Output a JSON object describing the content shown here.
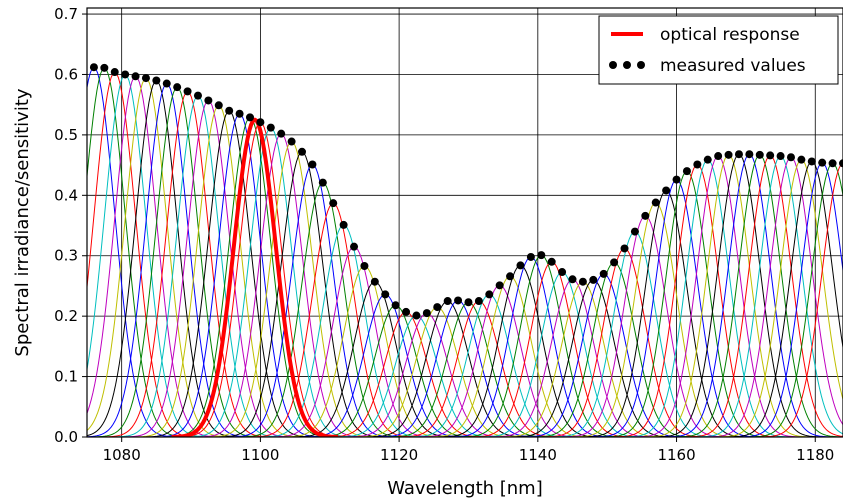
{
  "chart_data": {
    "type": "line",
    "title": "",
    "xlabel": "Wavelength [nm]",
    "ylabel": "Spectral irradiance/sensitivity",
    "xlim": [
      1075,
      1184
    ],
    "ylim": [
      0,
      0.71
    ],
    "x_ticks": [
      1080,
      1100,
      1120,
      1140,
      1160,
      1180
    ],
    "y_ticks": [
      0.0,
      0.1,
      0.2,
      0.3,
      0.4,
      0.5,
      0.6,
      0.7
    ],
    "x_tick_labels": [
      "1080",
      "1100",
      "1120",
      "1140",
      "1160",
      "1180"
    ],
    "y_tick_labels": [
      "0.0",
      "0.1",
      "0.2",
      "0.3",
      "0.4",
      "0.5",
      "0.6",
      "0.7"
    ],
    "grid": true,
    "legend_position": "top-right",
    "legend": [
      {
        "label": "optical response",
        "color": "#ff0000",
        "style": "line"
      },
      {
        "label": "measured values",
        "color": "#000000",
        "style": "dots"
      }
    ],
    "filter_bank": {
      "sigma_nm": 3.0,
      "centers_start": 1076,
      "centers_end": 1184,
      "centers_step": 1.5,
      "colors": [
        "#0000ff",
        "#008000",
        "#ff0000",
        "#00bfbf",
        "#bf00bf",
        "#bfbf00",
        "#000000"
      ]
    },
    "highlight_series": {
      "name": "optical response",
      "center": 1099.2,
      "sigma_nm": 3.0,
      "color": "#ff0000"
    },
    "measured_values": {
      "name": "measured values",
      "color": "#000000",
      "x": [
        1076,
        1077.5,
        1079,
        1080.5,
        1082,
        1083.5,
        1085,
        1086.5,
        1088,
        1089.5,
        1091,
        1092.5,
        1094,
        1095.5,
        1097,
        1098.5,
        1100,
        1101.5,
        1103,
        1104.5,
        1106,
        1107.5,
        1109,
        1110.5,
        1112,
        1113.5,
        1115,
        1116.5,
        1118,
        1119.5,
        1121,
        1122.5,
        1124,
        1125.5,
        1127,
        1128.5,
        1130,
        1131.5,
        1133,
        1134.5,
        1136,
        1137.5,
        1139,
        1140.5,
        1142,
        1143.5,
        1145,
        1146.5,
        1148,
        1149.5,
        1151,
        1152.5,
        1154,
        1155.5,
        1157,
        1158.5,
        1160,
        1161.5,
        1163,
        1164.5,
        1166,
        1167.5,
        1169,
        1170.5,
        1172,
        1173.5,
        1175,
        1176.5,
        1178,
        1179.5,
        1181,
        1182.5,
        1184
      ],
      "y": [
        0.612,
        0.611,
        0.604,
        0.6,
        0.597,
        0.594,
        0.59,
        0.585,
        0.579,
        0.572,
        0.565,
        0.557,
        0.549,
        0.54,
        0.535,
        0.529,
        0.521,
        0.512,
        0.502,
        0.489,
        0.472,
        0.451,
        0.421,
        0.387,
        0.351,
        0.315,
        0.283,
        0.257,
        0.236,
        0.218,
        0.207,
        0.201,
        0.205,
        0.215,
        0.225,
        0.226,
        0.223,
        0.225,
        0.236,
        0.251,
        0.266,
        0.284,
        0.298,
        0.301,
        0.29,
        0.273,
        0.261,
        0.257,
        0.26,
        0.27,
        0.289,
        0.312,
        0.34,
        0.366,
        0.388,
        0.408,
        0.426,
        0.44,
        0.451,
        0.459,
        0.465,
        0.467,
        0.468,
        0.468,
        0.467,
        0.466,
        0.465,
        0.463,
        0.459,
        0.456,
        0.454,
        0.453,
        0.453
      ]
    }
  }
}
